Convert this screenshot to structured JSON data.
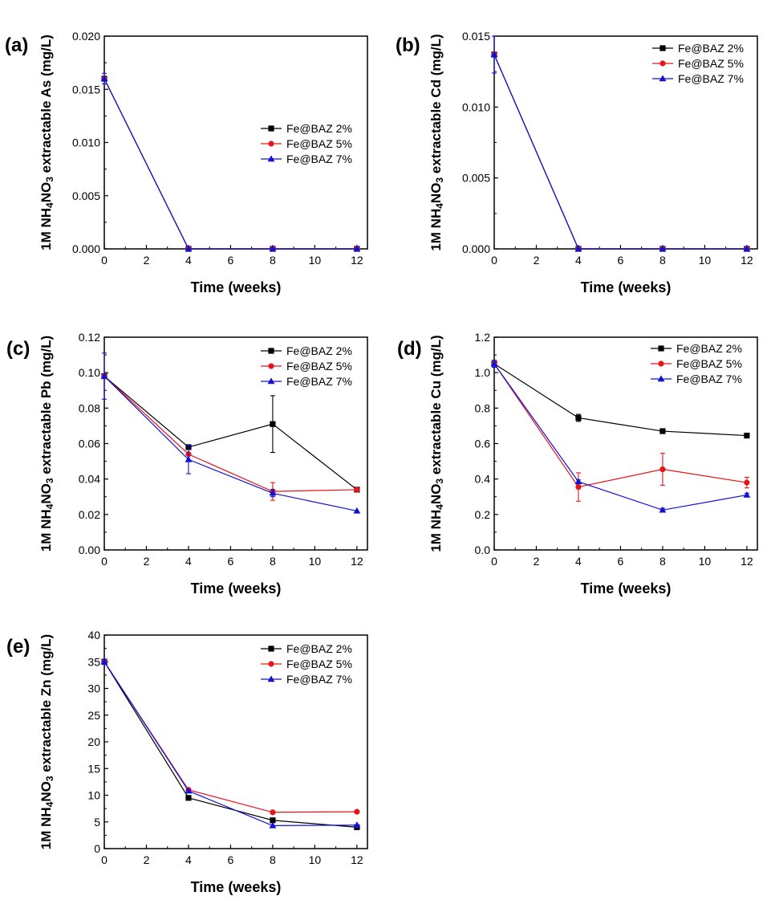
{
  "chart_data": [
    {
      "type": "line",
      "panel_label": "(a)",
      "xlabel": "Time (weeks)",
      "ylabel": {
        "pre": "1M NH",
        "sub1": "4",
        "mid": "NO",
        "sub2": "3",
        "post": " extractable As (mg/L)"
      },
      "x": [
        0,
        4,
        8,
        12
      ],
      "xlim": [
        0,
        12.5
      ],
      "ylim": [
        0,
        0.02
      ],
      "xticks": [
        "0",
        "2",
        "4",
        "6",
        "8",
        "10",
        "12"
      ],
      "yticks": [
        "0.000",
        "0.005",
        "0.010",
        "0.015",
        "0.020"
      ],
      "legend": "center-right",
      "series": [
        {
          "name": "Fe@BAZ 2%",
          "color": "#000000",
          "marker": "square",
          "values": [
            0.016,
            0,
            0,
            0
          ],
          "errors": [
            0,
            0,
            0,
            0
          ]
        },
        {
          "name": "Fe@BAZ 5%",
          "color": "#e8141b",
          "marker": "circle",
          "values": [
            0.016,
            0,
            0,
            0
          ],
          "errors": [
            0,
            0,
            0,
            0
          ]
        },
        {
          "name": "Fe@BAZ 7%",
          "color": "#1010d8",
          "marker": "triangle",
          "values": [
            0.016,
            0,
            0,
            0
          ],
          "errors": [
            0.0005,
            0,
            0,
            0
          ]
        }
      ]
    },
    {
      "type": "line",
      "panel_label": "(b)",
      "xlabel": "Time (weeks)",
      "ylabel": {
        "pre": "1M NH",
        "sub1": "4",
        "mid": "NO",
        "sub2": "3",
        "post": " extractable Cd (mg/L)"
      },
      "x": [
        0,
        4,
        8,
        12
      ],
      "xlim": [
        0,
        12.5
      ],
      "ylim": [
        0,
        0.015
      ],
      "xticks": [
        "0",
        "2",
        "4",
        "6",
        "8",
        "10",
        "12"
      ],
      "yticks": [
        "0.000",
        "0.005",
        "0.010",
        "0.015"
      ],
      "legend": "top-right",
      "series": [
        {
          "name": "Fe@BAZ 2%",
          "color": "#000000",
          "marker": "square",
          "values": [
            0.0137,
            0,
            0,
            0
          ],
          "errors": [
            0,
            0,
            0,
            0
          ]
        },
        {
          "name": "Fe@BAZ 5%",
          "color": "#e8141b",
          "marker": "circle",
          "values": [
            0.0137,
            0,
            0,
            0
          ],
          "errors": [
            0,
            0,
            0,
            0
          ]
        },
        {
          "name": "Fe@BAZ 7%",
          "color": "#1010d8",
          "marker": "triangle",
          "values": [
            0.0137,
            0,
            0,
            0
          ],
          "errors": [
            0.0013,
            0,
            0,
            0
          ]
        }
      ]
    },
    {
      "type": "line",
      "panel_label": "(c)",
      "xlabel": "Time (weeks)",
      "ylabel": {
        "pre": "1M NH",
        "sub1": "4",
        "mid": "NO",
        "sub2": "3",
        "post": " extractable Pb (mg/L)"
      },
      "x": [
        0,
        4,
        8,
        12
      ],
      "xlim": [
        0,
        12.5
      ],
      "ylim": [
        0,
        0.12
      ],
      "xticks": [
        "0",
        "2",
        "4",
        "6",
        "8",
        "10",
        "12"
      ],
      "yticks": [
        "0.00",
        "0.02",
        "0.04",
        "0.06",
        "0.08",
        "0.10",
        "0.12"
      ],
      "legend": "top-right",
      "series": [
        {
          "name": "Fe@BAZ 2%",
          "color": "#000000",
          "marker": "square",
          "values": [
            0.098,
            0.058,
            0.071,
            0.034
          ],
          "errors": [
            0,
            0.001,
            0.016,
            0
          ]
        },
        {
          "name": "Fe@BAZ 5%",
          "color": "#e8141b",
          "marker": "circle",
          "values": [
            0.098,
            0.054,
            0.033,
            0.034
          ],
          "errors": [
            0,
            0,
            0.005,
            0.001
          ]
        },
        {
          "name": "Fe@BAZ 7%",
          "color": "#1010d8",
          "marker": "triangle",
          "values": [
            0.098,
            0.051,
            0.032,
            0.022
          ],
          "errors": [
            0.013,
            0.008,
            0.002,
            0
          ]
        }
      ]
    },
    {
      "type": "line",
      "panel_label": "(d)",
      "xlabel": "Time (weeks)",
      "ylabel": {
        "pre": "1M NH",
        "sub1": "4",
        "mid": "NO",
        "sub2": "3",
        "post": " extractable Cu (mg/L)"
      },
      "x": [
        0,
        4,
        8,
        12
      ],
      "xlim": [
        0,
        12.5
      ],
      "ylim": [
        0,
        1.2
      ],
      "xticks": [
        "0",
        "2",
        "4",
        "6",
        "8",
        "10",
        "12"
      ],
      "yticks": [
        "0.0",
        "0.2",
        "0.4",
        "0.6",
        "0.8",
        "1.0",
        "1.2"
      ],
      "legend": "top-right",
      "series": [
        {
          "name": "Fe@BAZ 2%",
          "color": "#000000",
          "marker": "square",
          "values": [
            1.05,
            0.745,
            0.67,
            0.645
          ],
          "errors": [
            0,
            0.02,
            0.01,
            0.01
          ]
        },
        {
          "name": "Fe@BAZ 5%",
          "color": "#e8141b",
          "marker": "circle",
          "values": [
            1.05,
            0.355,
            0.455,
            0.38
          ],
          "errors": [
            0,
            0.08,
            0.09,
            0.03
          ]
        },
        {
          "name": "Fe@BAZ 7%",
          "color": "#1010d8",
          "marker": "triangle",
          "values": [
            1.05,
            0.385,
            0.225,
            0.31
          ],
          "errors": [
            0.02,
            0.01,
            0.01,
            0.01
          ]
        }
      ]
    },
    {
      "type": "line",
      "panel_label": "(e)",
      "xlabel": "Time (weeks)",
      "ylabel": {
        "pre": "1M NH",
        "sub1": "4",
        "mid": "NO",
        "sub2": "3",
        "post": " extractable Zn (mg/L)"
      },
      "x": [
        0,
        4,
        8,
        12
      ],
      "xlim": [
        0,
        12.5
      ],
      "ylim": [
        0,
        40
      ],
      "xticks": [
        "0",
        "2",
        "4",
        "6",
        "8",
        "10",
        "12"
      ],
      "yticks": [
        "0",
        "5",
        "10",
        "15",
        "20",
        "25",
        "30",
        "35",
        "40"
      ],
      "legend": "top-right",
      "series": [
        {
          "name": "Fe@BAZ 2%",
          "color": "#000000",
          "marker": "square",
          "values": [
            35,
            9.5,
            5.3,
            4.0
          ],
          "errors": [
            0,
            0,
            0.3,
            0
          ]
        },
        {
          "name": "Fe@BAZ 5%",
          "color": "#e8141b",
          "marker": "circle",
          "values": [
            35,
            11.0,
            6.8,
            6.9
          ],
          "errors": [
            0,
            0,
            0,
            0
          ]
        },
        {
          "name": "Fe@BAZ 7%",
          "color": "#1010d8",
          "marker": "triangle",
          "values": [
            35,
            10.8,
            4.3,
            4.4
          ],
          "errors": [
            0.5,
            0,
            0,
            0
          ]
        }
      ]
    }
  ]
}
